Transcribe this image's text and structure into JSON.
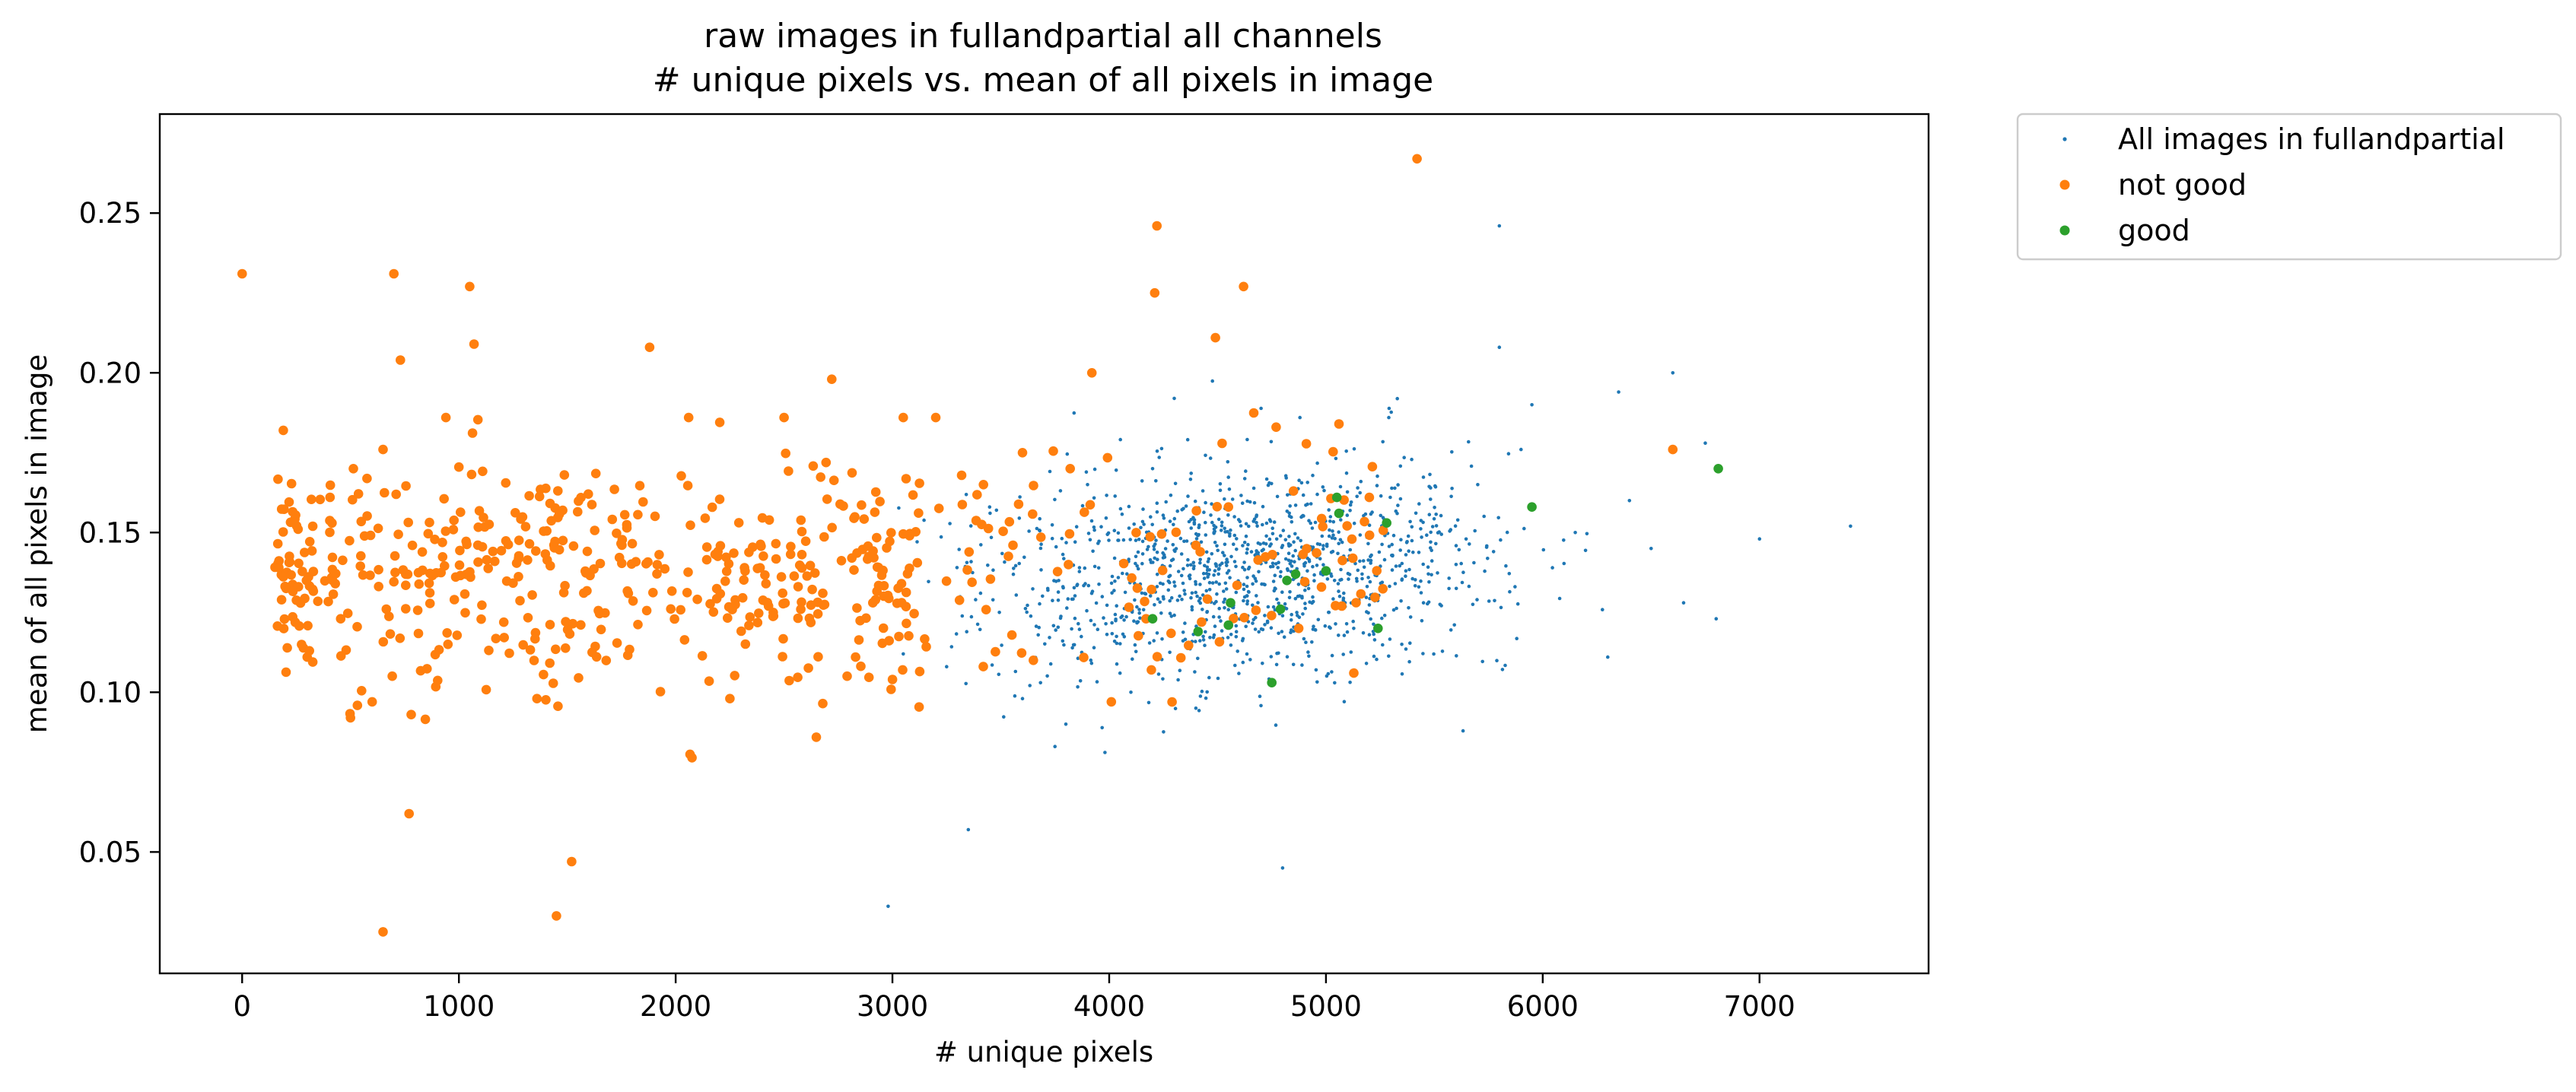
{
  "chart_data": {
    "type": "scatter",
    "title": "raw images in fullandpartial all channels",
    "subtitle": "# unique pixels vs. mean of all pixels in image",
    "xlabel": "# unique pixels",
    "ylabel": "mean of all pixels in image",
    "xlim": [
      -380,
      7780
    ],
    "ylim": [
      0.012,
      0.281
    ],
    "xticks": [
      "0",
      "1000",
      "2000",
      "3000",
      "4000",
      "5000",
      "6000",
      "7000"
    ],
    "yticks": [
      "0.05",
      "0.10",
      "0.15",
      "0.20",
      "0.25"
    ],
    "grid": false,
    "legend_position": "outside-top-right",
    "series": [
      {
        "name": "All images in fullandpartial",
        "color": "#1f77b4",
        "marker": "small-dot",
        "summary": {
          "approx_count": 1200,
          "x_center": 4600,
          "y_center": 0.137,
          "x_spread": 600,
          "y_spread": 0.016
        },
        "points": [
          [
            2980,
            0.033
          ],
          [
            3350,
            0.057
          ],
          [
            4800,
            0.045
          ],
          [
            5800,
            0.246
          ],
          [
            5800,
            0.208
          ],
          [
            6350,
            0.194
          ],
          [
            5950,
            0.19
          ],
          [
            6600,
            0.2
          ],
          [
            7000,
            0.148
          ],
          [
            7420,
            0.152
          ],
          [
            6800,
            0.123
          ],
          [
            6300,
            0.111
          ],
          [
            6650,
            0.128
          ],
          [
            6750,
            0.178
          ],
          [
            4300,
            0.192
          ],
          [
            4880,
            0.186
          ],
          [
            5290,
            0.186
          ],
          [
            5900,
            0.176
          ],
          [
            5450,
            0.128
          ],
          [
            3750,
            0.083
          ],
          [
            3600,
            0.098
          ],
          [
            3250,
            0.108
          ],
          [
            3050,
            0.112
          ],
          [
            3800,
            0.09
          ],
          [
            4400,
            0.095
          ],
          [
            4100,
            0.1
          ],
          [
            5200,
            0.118
          ],
          [
            5350,
            0.115
          ],
          [
            3900,
            0.165
          ],
          [
            4200,
            0.17
          ],
          [
            6150,
            0.15
          ],
          [
            6400,
            0.16
          ],
          [
            6500,
            0.145
          ],
          [
            5700,
            0.165
          ],
          [
            5600,
            0.14
          ]
        ]
      },
      {
        "name": "not good",
        "color": "#ff7f0e",
        "marker": "dot",
        "summary": {
          "approx_count": 600,
          "x_center": 1600,
          "y_center": 0.137,
          "x_spread": 900,
          "y_spread": 0.017
        },
        "points": [
          [
            0,
            0.231
          ],
          [
            700,
            0.231
          ],
          [
            1050,
            0.227
          ],
          [
            1070,
            0.209
          ],
          [
            730,
            0.204
          ],
          [
            5420,
            0.267
          ],
          [
            4220,
            0.246
          ],
          [
            4210,
            0.225
          ],
          [
            4620,
            0.227
          ],
          [
            4490,
            0.211
          ],
          [
            3920,
            0.2
          ],
          [
            1880,
            0.208
          ],
          [
            2060,
            0.186
          ],
          [
            2500,
            0.186
          ],
          [
            2720,
            0.198
          ],
          [
            3050,
            0.186
          ],
          [
            3200,
            0.186
          ],
          [
            4770,
            0.183
          ],
          [
            5060,
            0.184
          ],
          [
            6600,
            0.176
          ],
          [
            190,
            0.182
          ],
          [
            940,
            0.186
          ],
          [
            650,
            0.176
          ],
          [
            770,
            0.062
          ],
          [
            650,
            0.025
          ],
          [
            1450,
            0.03
          ],
          [
            1520,
            0.047
          ],
          [
            500,
            0.092
          ],
          [
            780,
            0.093
          ],
          [
            600,
            0.097
          ],
          [
            2250,
            0.098
          ],
          [
            1360,
            0.098
          ],
          [
            4010,
            0.097
          ],
          [
            3000,
            0.104
          ],
          [
            300,
            0.111
          ],
          [
            2830,
            0.111
          ],
          [
            3650,
            0.11
          ],
          [
            4170,
            0.123
          ],
          [
            4550,
            0.158
          ],
          [
            5200,
            0.161
          ],
          [
            4400,
            0.146
          ],
          [
            4850,
            0.163
          ],
          [
            3420,
            0.165
          ],
          [
            3600,
            0.175
          ],
          [
            3820,
            0.17
          ]
        ]
      },
      {
        "name": "good",
        "color": "#2ca02c",
        "marker": "dot",
        "points": [
          [
            6810,
            0.17
          ],
          [
            5950,
            0.158
          ],
          [
            5280,
            0.153
          ],
          [
            5050,
            0.161
          ],
          [
            5060,
            0.156
          ],
          [
            4860,
            0.137
          ],
          [
            4820,
            0.135
          ],
          [
            5000,
            0.138
          ],
          [
            4560,
            0.128
          ],
          [
            4790,
            0.126
          ],
          [
            4410,
            0.119
          ],
          [
            4550,
            0.121
          ],
          [
            4200,
            0.123
          ],
          [
            4750,
            0.103
          ],
          [
            5240,
            0.12
          ]
        ]
      }
    ]
  }
}
